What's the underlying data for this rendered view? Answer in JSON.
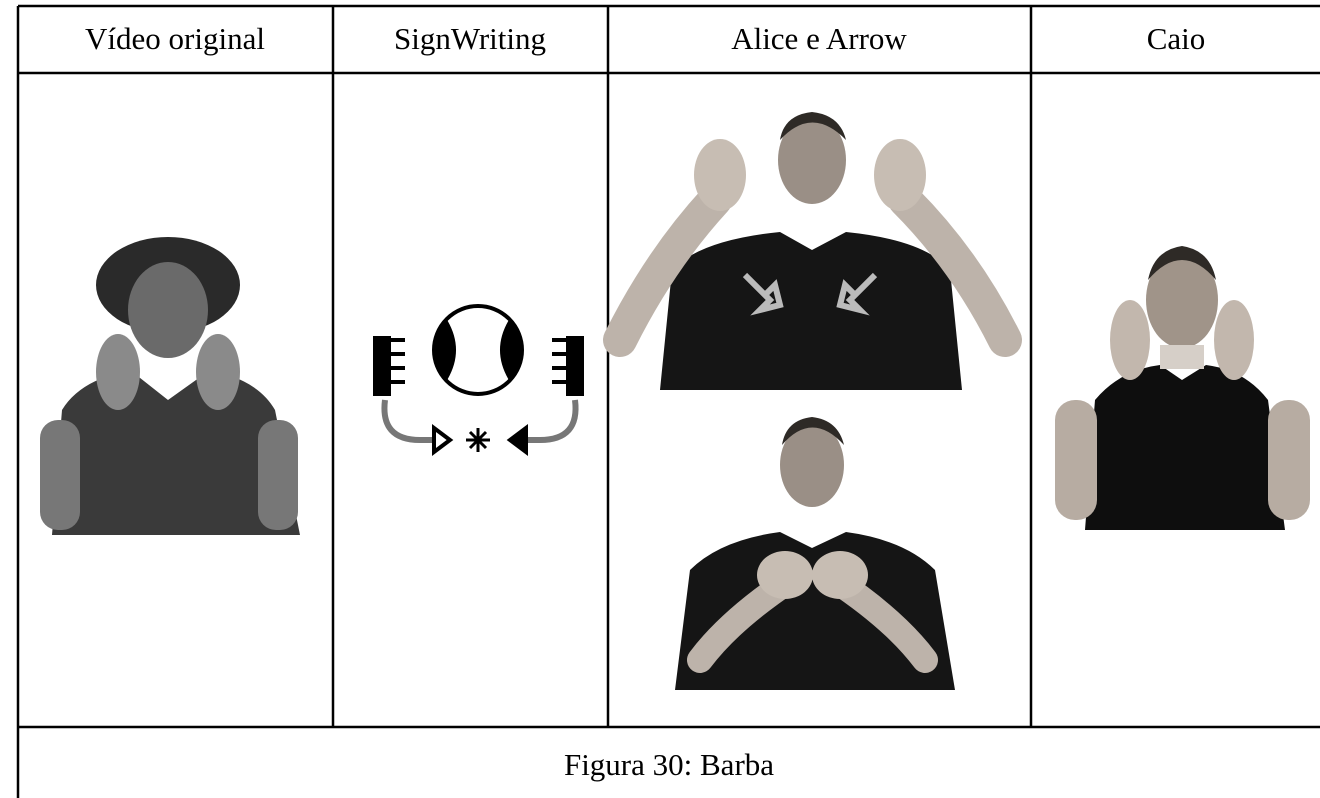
{
  "table": {
    "headers": [
      "Vídeo original",
      "SignWriting",
      "Alice e Arrow",
      "Caio"
    ],
    "caption": "Figura 30: Barba"
  }
}
